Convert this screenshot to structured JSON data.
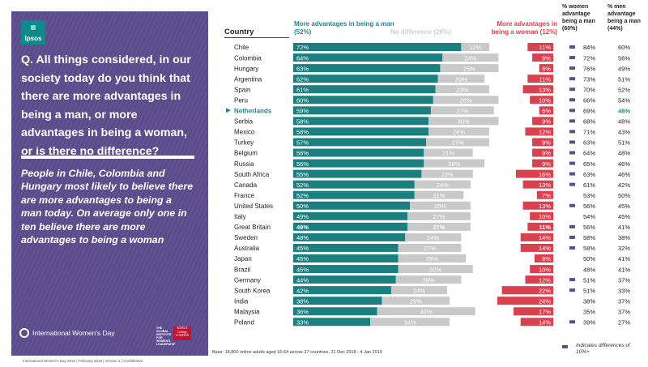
{
  "side_panel": {
    "logo_text": "Ipsos",
    "question": "Q. All things considered, in our society today do you think that there are more advantages in being a man, or more advantages in being a woman, or is there no difference?",
    "subtitle": "People in Chile, Colombia and Hungary most likely to believe there are more advantages to being a man today. On average only one in ten believe there are more advantages to being a woman",
    "event_brand": "International Women's Day",
    "partner_1": "THE GLOBAL INSTITUTE FOR WOMEN'S LEADERSHIP",
    "partner_2": "KING'S College LONDON"
  },
  "footer_left": "International Women's Day 2019 | February 2019 | Version 1 | Confidential",
  "base_note": "Base: 18,800 online adults aged 16-64 across 27 countries,  21 Dec 2018 - 4 Jan  2019",
  "headers": {
    "country": "Country",
    "more_man": "More advantages in being a man (52%)",
    "no_difference": "No difference (26%)",
    "more_woman": "More advantages in being a woman (12%)",
    "women_pct": "% women advantage being a man (60%)",
    "men_pct": "% men advantage being a man (44%)"
  },
  "legend": "Indicates differences of 10%+",
  "colors": {
    "man": "#1b7f7f",
    "none": "#c9c9c9",
    "woman": "#d9414f",
    "highlight": "#1b8a8a",
    "flag": "#5d4d8e"
  },
  "chart_data": {
    "type": "bar",
    "stacked": true,
    "title": "Q. All things considered, in our society today do you think that there are more advantages in being a man, or more advantages in being a woman, or is there no difference?",
    "highlight_category": "Netherlands",
    "categories": [
      "Chile",
      "Colombia",
      "Hungary",
      "Argentina",
      "Spain",
      "Peru",
      "Netherlands",
      "Serbia",
      "Mexico",
      "Turkey",
      "Belgium",
      "Russia",
      "South Africa",
      "Canada",
      "France",
      "United States",
      "Italy",
      "Great Britain",
      "Sweden",
      "Australia",
      "Japan",
      "Brazil",
      "Germany",
      "South Korea",
      "India",
      "Malaysia",
      "Poland"
    ],
    "series": [
      {
        "name": "More advantages in being a man",
        "values": [
          72,
          64,
          63,
          62,
          61,
          60,
          59,
          58,
          58,
          57,
          56,
          56,
          55,
          52,
          52,
          50,
          49,
          49,
          48,
          45,
          45,
          45,
          44,
          42,
          38,
          36,
          33
        ]
      },
      {
        "name": "No difference",
        "values": [
          12,
          24,
          25,
          20,
          23,
          28,
          27,
          30,
          26,
          27,
          21,
          26,
          22,
          24,
          21,
          26,
          27,
          27,
          24,
          27,
          29,
          32,
          28,
          24,
          29,
          42,
          34
        ]
      },
      {
        "name": "More advantages in being a woman",
        "values": [
          11,
          9,
          6,
          11,
          13,
          10,
          6,
          9,
          12,
          9,
          9,
          9,
          16,
          13,
          7,
          13,
          10,
          11,
          14,
          14,
          8,
          10,
          12,
          22,
          24,
          17,
          14
        ]
      }
    ],
    "table": {
      "women_pct": [
        84,
        72,
        76,
        73,
        70,
        66,
        69,
        68,
        71,
        63,
        64,
        65,
        63,
        61,
        53,
        56,
        54,
        56,
        58,
        58,
        50,
        48,
        51,
        51,
        38,
        35,
        39
      ],
      "men_pct": [
        60,
        56,
        49,
        51,
        52,
        54,
        48,
        48,
        43,
        51,
        48,
        46,
        46,
        42,
        50,
        45,
        45,
        41,
        38,
        32,
        41,
        41,
        37,
        33,
        37,
        37,
        27
      ],
      "flags": [
        true,
        true,
        true,
        true,
        true,
        true,
        true,
        true,
        true,
        true,
        true,
        true,
        true,
        true,
        false,
        true,
        false,
        true,
        true,
        true,
        false,
        false,
        true,
        true,
        false,
        false,
        true
      ]
    }
  }
}
